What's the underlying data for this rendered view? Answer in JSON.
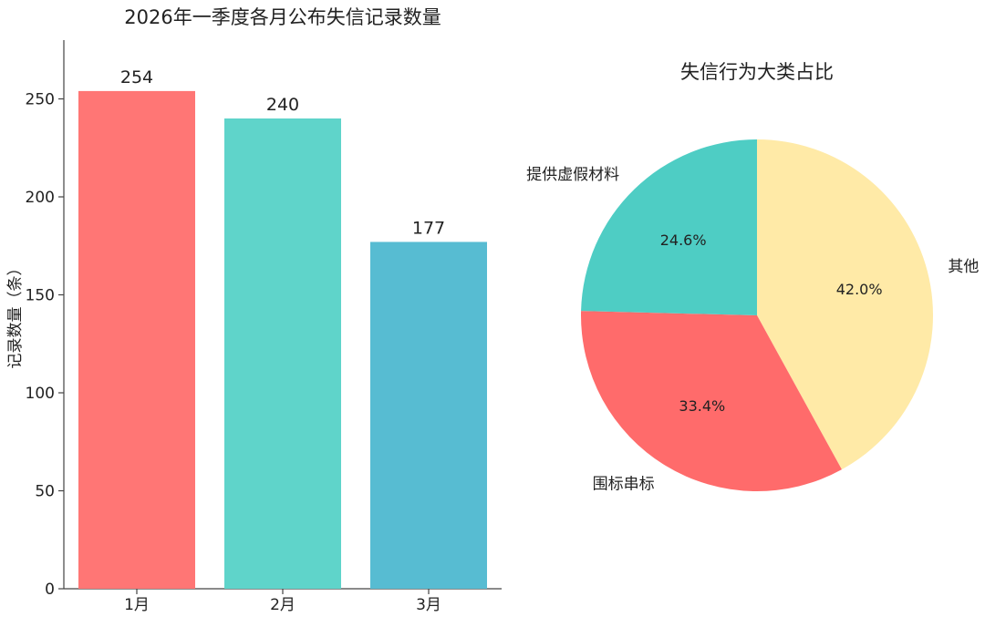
{
  "chart_data": [
    {
      "type": "bar",
      "title": "2026年一季度各月公布失信记录数量",
      "ylabel": "记录数量（条）",
      "xlabel": "",
      "categories": [
        "1月",
        "2月",
        "3月"
      ],
      "values": [
        254,
        240,
        177
      ],
      "colors": [
        "#FF7675",
        "#5FD4CA",
        "#57BCD2"
      ],
      "ylim": [
        0,
        280
      ],
      "yticks": [
        0,
        50,
        100,
        150,
        200,
        250
      ],
      "grid": false
    },
    {
      "type": "pie",
      "title": "失信行为大类占比",
      "labels": [
        "其他",
        "围标串标",
        "提供虚假材料"
      ],
      "percentages": [
        "42.0%",
        "33.4%",
        "24.6%"
      ],
      "values": [
        42.0,
        33.4,
        24.6
      ],
      "colors": [
        "#FFEAA7",
        "#FF6B6B",
        "#4ECDC4"
      ]
    }
  ]
}
